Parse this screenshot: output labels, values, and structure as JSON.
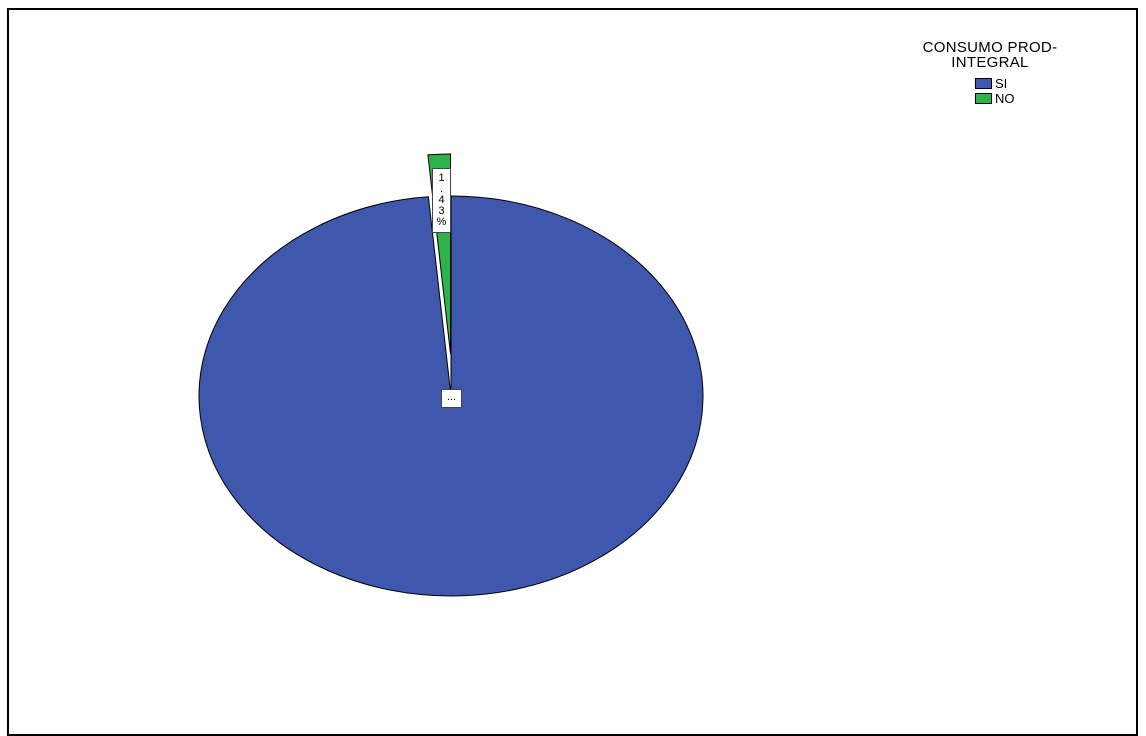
{
  "chart_data": {
    "type": "pie",
    "legend_title": "CONSUMO PROD-INTEGRAL",
    "legend_title_lines": [
      "CONSUMO PROD-",
      "INTEGRAL"
    ],
    "legend_position": "top-right",
    "categories": [
      "SI",
      "NO"
    ],
    "values": [
      98.57,
      1.43
    ],
    "colors": [
      "#3f58ad",
      "#2eb34a"
    ],
    "exploded": [
      false,
      true
    ],
    "data_labels": [
      "...",
      "1.43%"
    ],
    "data_label_chars": [
      "1",
      ".",
      "4",
      "3",
      "%"
    ]
  }
}
